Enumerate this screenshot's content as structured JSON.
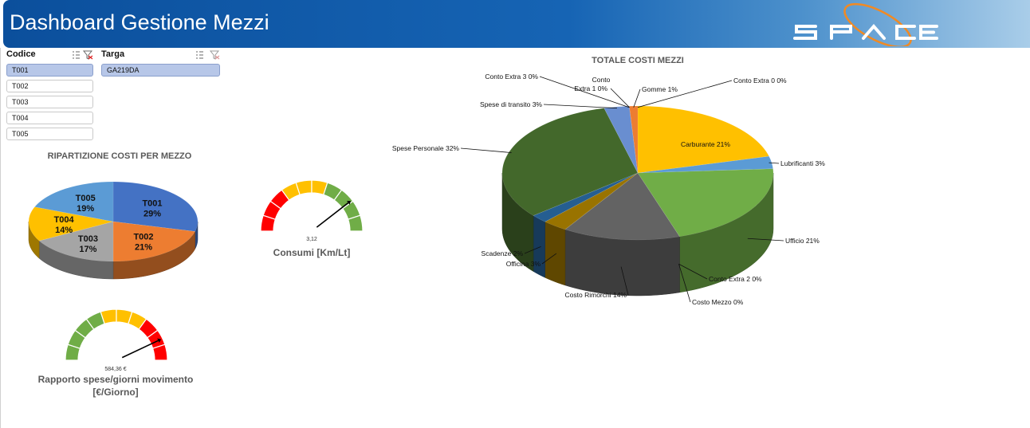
{
  "header": {
    "title": "Dashboard Gestione Mezzi",
    "logo_text": "SPACE"
  },
  "slicers": {
    "codice": {
      "title": "Codice",
      "items": [
        "T001",
        "T002",
        "T003",
        "T004",
        "T005"
      ],
      "selected": "T001"
    },
    "targa": {
      "title": "Targa",
      "items": [
        "GA219DA"
      ],
      "selected": "GA219DA"
    }
  },
  "pie_mezzo": {
    "title": "RIPARTIZIONE COSTI PER MEZZO",
    "chart_data": {
      "type": "pie",
      "title": "RIPARTIZIONE COSTI PER MEZZO",
      "categories": [
        "T001",
        "T002",
        "T003",
        "T004",
        "T005"
      ],
      "values": [
        29,
        21,
        17,
        14,
        19
      ],
      "colors": [
        "#4472c4",
        "#ed7d31",
        "#a5a5a5",
        "#ffc000",
        "#5b9bd5"
      ]
    }
  },
  "gauge_consumi": {
    "value_text": "3,12",
    "label": "Consumi [Km/Lt]",
    "needle_fraction": 0.79,
    "colors": {
      "low": "#ff0000",
      "mid": "#ffc000",
      "high": "#70ad47"
    }
  },
  "gauge_rapporto": {
    "value_text": "584,36 €",
    "label_line1": "Rapporto spese/giorni movimento",
    "label_line2": "[€/Giorno]",
    "needle_fraction": 0.86,
    "colors": {
      "low": "#70ad47",
      "mid": "#ffc000",
      "high": "#ff0000"
    }
  },
  "pie_totale": {
    "title": "TOTALE COSTI MEZZI",
    "chart_data": {
      "type": "pie",
      "title": "TOTALE COSTI MEZZI",
      "categories": [
        "Conto Extra 0",
        "Carburante",
        "Lubrificanti",
        "Ufficio",
        "Conto Extra 2",
        "Costo Mezzo",
        "Costo Rimorchi",
        "Officina",
        "Scadenze",
        "Spese Personale",
        "Spese di transito",
        "Conto Extra 3",
        "Conto Extra 1",
        "Gomme"
      ],
      "values": [
        0,
        21,
        3,
        21,
        0,
        0,
        14,
        3,
        2,
        32,
        3,
        0,
        0,
        1
      ],
      "labels": [
        "Conto Extra 0 0%",
        "Carburante 21%",
        "Lubrificanti 3%",
        "Ufficio 21%",
        "Conto Extra 2 0%",
        "Costo Mezzo 0%",
        "Costo Rimorchi 14%",
        "Officina 3%",
        "Scadenze 2%",
        "Spese Personale 32%",
        "Spese di transito 3%",
        "Conto Extra 3 0%",
        "Conto Extra 1 0%",
        "Gomme 1%"
      ],
      "colors": [
        "#a5a5a5",
        "#ffc000",
        "#5b9bd5",
        "#70ad47",
        "#264478",
        "#9e480e",
        "#636363",
        "#997300",
        "#255e91",
        "#43682b",
        "#698ed0",
        "#f1975a",
        "#b7b7b7",
        "#ed7d31"
      ]
    }
  }
}
